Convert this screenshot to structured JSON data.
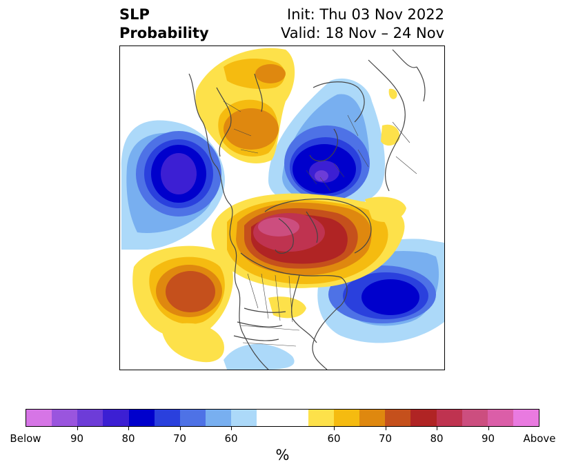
{
  "title": {
    "left_line1": "SLP",
    "left_line2": "Probability",
    "right_line1": "Init: Thu 03 Nov 2022",
    "right_line2": "Valid: 18 Nov – 24 Nov"
  },
  "colors": {
    "below": [
      "#d675e6",
      "#9a55de",
      "#6d3cd8",
      "#3c1fd3",
      "#0000cc",
      "#2a40dd",
      "#4e72e6",
      "#78aff0",
      "#acd9f9"
    ],
    "neutral": "#ffffff",
    "above": [
      "#fde14a",
      "#f5bb10",
      "#df880f",
      "#c5501c",
      "#b02424",
      "#bf3350",
      "#cc4e7f",
      "#db5ea8",
      "#e97ae0"
    ],
    "land_outline": "#444444"
  },
  "colorbar": {
    "tick_labels": [
      "Below",
      "90",
      "80",
      "70",
      "60",
      "60",
      "70",
      "80",
      "90",
      "Above"
    ],
    "unit_label": "%"
  }
}
